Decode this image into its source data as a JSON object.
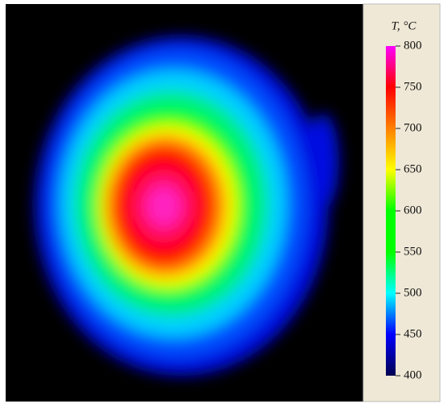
{
  "colorbar": {
    "label": "T, °C",
    "lim": [
      400,
      800
    ],
    "ticks": [
      400,
      450,
      500,
      550,
      600,
      650,
      700,
      750,
      800
    ],
    "colors": [
      "#000050",
      "#0000ff",
      "#00ffff",
      "#00ff00",
      "#00ff00",
      "#ffff00",
      "#ff8000",
      "#ff0000",
      "#ff00ff"
    ]
  }
}
